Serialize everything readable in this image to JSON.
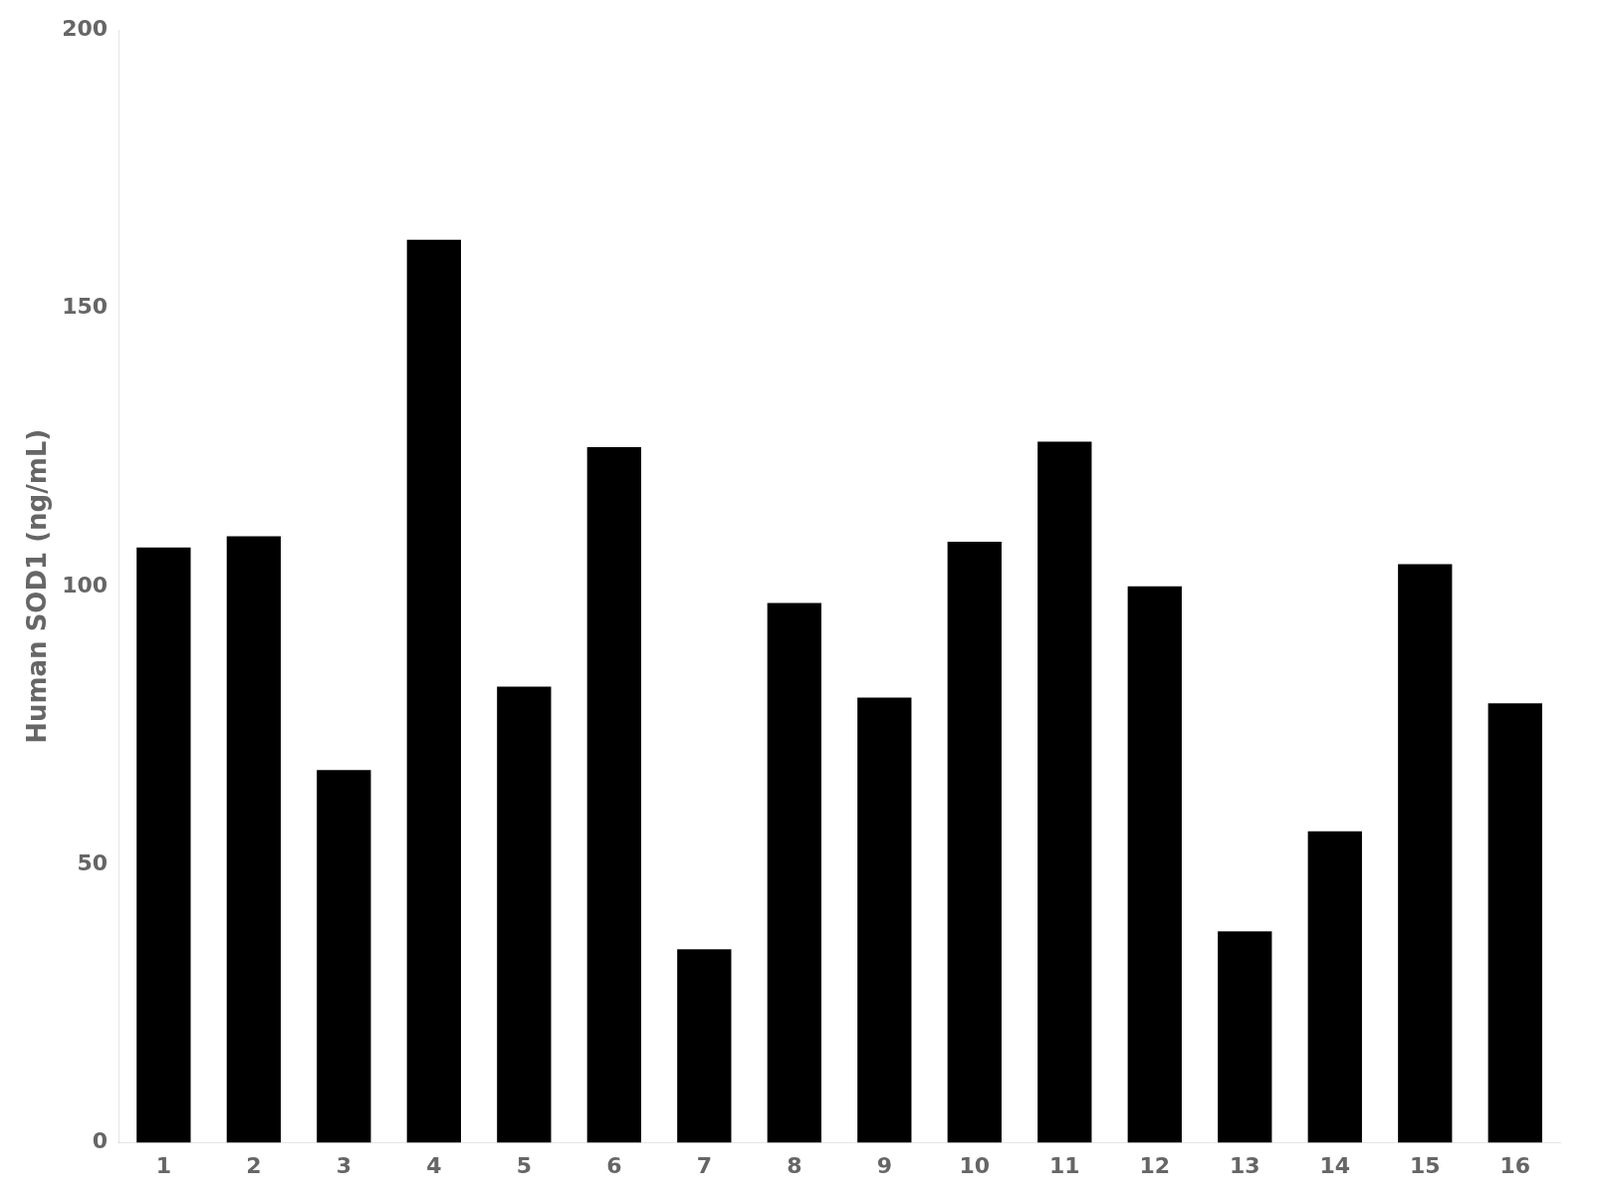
{
  "chart_data": {
    "type": "bar",
    "categories": [
      1,
      2,
      3,
      4,
      5,
      6,
      7,
      8,
      9,
      10,
      11,
      12,
      13,
      14,
      15,
      16
    ],
    "values": [
      107.0,
      109.0,
      67.0,
      162.3,
      82.0,
      125.0,
      34.8,
      97.0,
      80.0,
      108.0,
      126.0,
      100.0,
      38.0,
      56.0,
      104.0,
      79.0
    ],
    "color": "#000000",
    "ylabel": "Human SOD1 (ng/mL)",
    "ylim": [
      0,
      200
    ],
    "yticks": [
      0,
      50,
      100,
      150,
      200
    ],
    "grid": false
  }
}
